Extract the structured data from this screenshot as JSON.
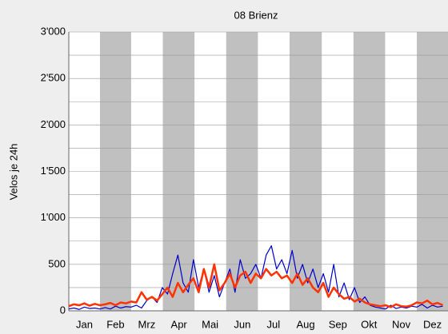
{
  "chart_data": {
    "type": "line",
    "title": "08 Brienz",
    "y_label": "Velos je 24h",
    "x": [
      0,
      5,
      10,
      15,
      20,
      25,
      30,
      35,
      40,
      45,
      50,
      55,
      60,
      65,
      70,
      75,
      80,
      85,
      90,
      95,
      100,
      105,
      110,
      115,
      120,
      125,
      130,
      135,
      140,
      145,
      150,
      155,
      160,
      165,
      170,
      175,
      180,
      185,
      190,
      195,
      200,
      205,
      210,
      215,
      220,
      225,
      230,
      235,
      240,
      245,
      250,
      255,
      260,
      265,
      270,
      275,
      280,
      285,
      290,
      295,
      300,
      305,
      310,
      315,
      320,
      325,
      330,
      335,
      340,
      345,
      350,
      355,
      360
    ],
    "series": [
      {
        "color": "#0000cc",
        "values": [
          20,
          30,
          15,
          40,
          25,
          30,
          20,
          35,
          20,
          50,
          30,
          45,
          40,
          60,
          30,
          110,
          150,
          90,
          250,
          180,
          400,
          600,
          300,
          200,
          550,
          250,
          450,
          200,
          380,
          150,
          300,
          450,
          200,
          550,
          350,
          400,
          500,
          350,
          600,
          700,
          450,
          550,
          400,
          650,
          350,
          500,
          300,
          450,
          250,
          400,
          200,
          500,
          150,
          300,
          120,
          250,
          90,
          150,
          60,
          40,
          30,
          20,
          60,
          25,
          40,
          30,
          50,
          40,
          70,
          30,
          60,
          40,
          50
        ]
      },
      {
        "color": "#ff3300",
        "values": [
          50,
          70,
          60,
          80,
          55,
          75,
          60,
          70,
          85,
          60,
          90,
          80,
          100,
          90,
          200,
          120,
          150,
          110,
          180,
          250,
          150,
          300,
          200,
          280,
          350,
          200,
          450,
          250,
          500,
          220,
          300,
          400,
          250,
          380,
          420,
          300,
          400,
          350,
          450,
          380,
          420,
          350,
          380,
          300,
          400,
          280,
          350,
          250,
          200,
          300,
          150,
          250,
          180,
          130,
          150,
          100,
          130,
          90,
          70,
          60,
          50,
          60,
          40,
          70,
          50,
          45,
          60,
          90,
          80,
          110,
          70,
          85,
          60
        ]
      }
    ],
    "xlim": [
      0,
      365
    ],
    "xticks": [
      {
        "value": 15,
        "label": "Jan"
      },
      {
        "value": 45,
        "label": "Feb"
      },
      {
        "value": 75,
        "label": "Mrz"
      },
      {
        "value": 106,
        "label": "Apr"
      },
      {
        "value": 136,
        "label": "Mai"
      },
      {
        "value": 167,
        "label": "Jun"
      },
      {
        "value": 197,
        "label": "Jul"
      },
      {
        "value": 228,
        "label": "Aug"
      },
      {
        "value": 259,
        "label": "Sep"
      },
      {
        "value": 289,
        "label": "Okt"
      },
      {
        "value": 320,
        "label": "Nov"
      },
      {
        "value": 350,
        "label": "Dez"
      }
    ],
    "ylim": [
      0,
      3000
    ],
    "yticks": [
      {
        "value": 0,
        "label": "0"
      },
      {
        "value": 500,
        "label": "500"
      },
      {
        "value": 1000,
        "label": "1'000"
      },
      {
        "value": 1500,
        "label": "1'500"
      },
      {
        "value": 2000,
        "label": "2'000"
      },
      {
        "value": 2500,
        "label": "2'500"
      },
      {
        "value": 3000,
        "label": "3'000"
      }
    ],
    "minor_yticks": [
      250,
      750,
      1250,
      1750,
      2250,
      2750
    ],
    "grid": true
  }
}
